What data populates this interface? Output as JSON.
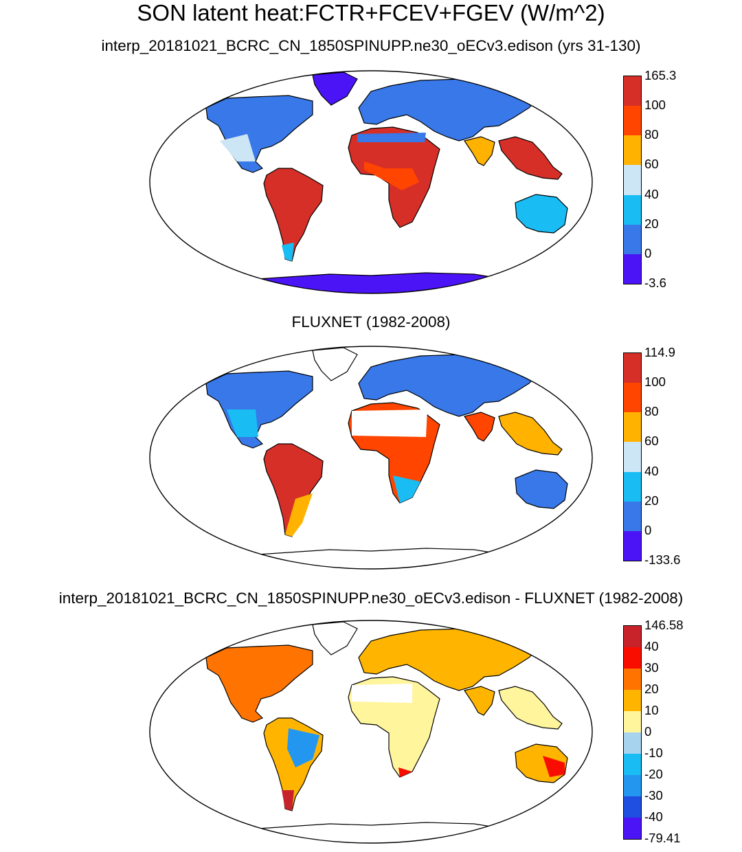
{
  "figure": {
    "title": "SON latent heat:FCTR+FCEV+FGEV (W/m^2)"
  },
  "panels": [
    {
      "subtitle": "interp_20181021_BCRC_CN_1850SPINUPP.ne30_oECv3.edison (yrs 31-130)",
      "colorbar": {
        "labels": [
          "165.3",
          "100",
          "80",
          "60",
          "40",
          "20",
          "0",
          "-3.6"
        ],
        "colors": [
          "#d62f27",
          "#ff4500",
          "#ffb300",
          "#cce6f5",
          "#19bdf4",
          "#3878e8",
          "#4b14f7"
        ]
      }
    },
    {
      "subtitle": "FLUXNET (1982-2008)",
      "colorbar": {
        "labels": [
          "114.9",
          "100",
          "80",
          "60",
          "40",
          "20",
          "0",
          "-133.6"
        ],
        "colors": [
          "#d62f27",
          "#ff4500",
          "#ffb300",
          "#cce6f5",
          "#19bdf4",
          "#3878e8",
          "#4b14f7"
        ]
      }
    },
    {
      "subtitle": "interp_20181021_BCRC_CN_1850SPINUPP.ne30_oECv3.edison - FLUXNET (1982-2008)",
      "colorbar": {
        "labels": [
          "146.58",
          "40",
          "30",
          "20",
          "10",
          "0",
          "-10",
          "-20",
          "-30",
          "-40",
          "-79.41"
        ],
        "colors": [
          "#c8232a",
          "#f90d00",
          "#ff7400",
          "#ffb500",
          "#fff59d",
          "#a7d3ef",
          "#19bdf4",
          "#2396f0",
          "#1f4fe0",
          "#4b14f7"
        ]
      }
    }
  ]
}
